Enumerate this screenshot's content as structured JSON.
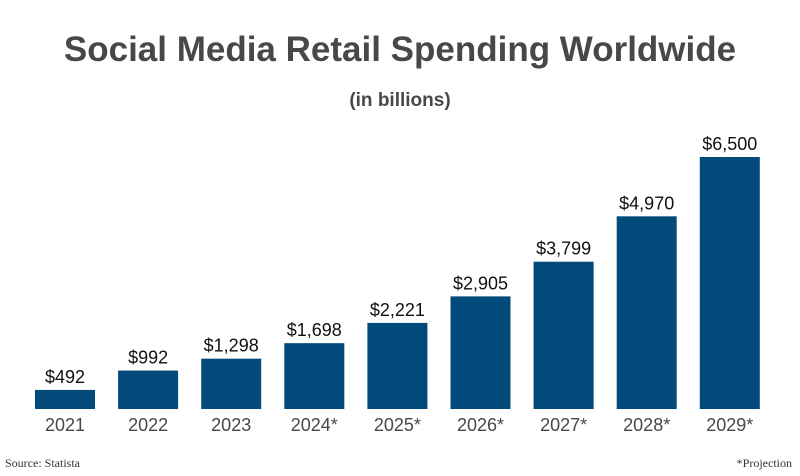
{
  "chart_data": {
    "type": "bar",
    "title": "Social Media Retail Spending Worldwide",
    "subtitle": "(in billions)",
    "categories": [
      "2021",
      "2022",
      "2023",
      "2024*",
      "2025*",
      "2026*",
      "2027*",
      "2028*",
      "2029*"
    ],
    "values": [
      492,
      992,
      1298,
      1698,
      2221,
      2905,
      3799,
      4970,
      6500
    ],
    "data_labels": [
      "$492",
      "$992",
      "$1,298",
      "$1,698",
      "$2,221",
      "$2,905",
      "$3,799",
      "$4,970",
      "$6,500"
    ],
    "xlabel": "",
    "ylabel": "",
    "ylim": [
      0,
      6500
    ],
    "grid": false,
    "bar_color": "#024a7a"
  },
  "footer": {
    "source": "Source: Statista",
    "note": "*Projection"
  }
}
